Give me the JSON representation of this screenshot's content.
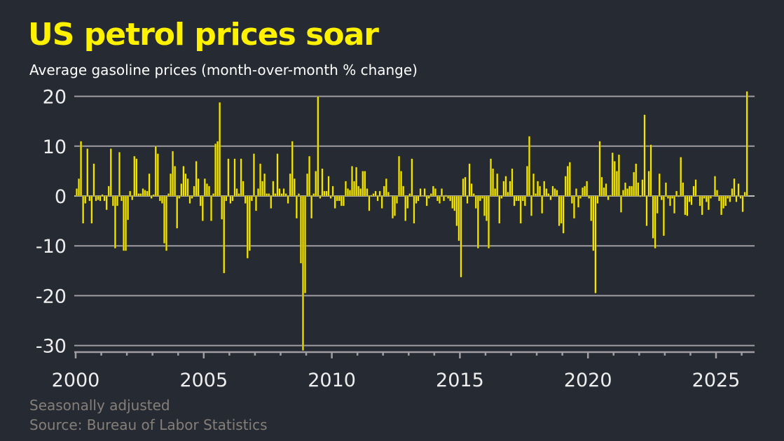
{
  "chart_data": {
    "type": "bar",
    "title": "US petrol prices soar",
    "subtitle": "Average gasoline prices (month-over-month % change)",
    "xlabel": "",
    "ylabel": "",
    "x_start": "2000-01",
    "x_end": "2026-03",
    "frequency": "monthly",
    "xlim": [
      2000,
      2026.25
    ],
    "ylim": [
      -31,
      21
    ],
    "yticks": [
      20,
      10,
      0,
      -10,
      -20,
      -30
    ],
    "ytick_labels": [
      "20",
      "10",
      "0",
      "-10",
      "-20",
      "-30"
    ],
    "xticks": [
      2000,
      2005,
      2010,
      2015,
      2020,
      2025
    ],
    "xtick_labels": [
      "2000",
      "2005",
      "2010",
      "2015",
      "2020",
      "2025"
    ],
    "grid": "horizontal",
    "values": [
      1.5,
      3.5,
      11,
      -5.5,
      -1.5,
      9.5,
      -1,
      -5.5,
      6.5,
      -1,
      -0.8,
      -1,
      0.3,
      -1,
      -2.8,
      2,
      9.5,
      -2,
      -10.5,
      -2,
      8.8,
      -1,
      -11,
      -11,
      -4.8,
      1,
      -0.8,
      8,
      7.5,
      0.5,
      0.5,
      1.5,
      1.2,
      1,
      4.5,
      -0.5,
      0.3,
      10,
      8.5,
      -1,
      -1.5,
      -9.5,
      -11,
      0.5,
      4.5,
      9,
      6,
      -6.5,
      -0.5,
      2.5,
      6,
      4.5,
      3.5,
      -1.5,
      -0.5,
      2,
      7,
      3.5,
      -2,
      -5,
      3.5,
      2.5,
      2,
      -5,
      0.5,
      10.5,
      11,
      18.8,
      -4.7,
      -15.5,
      -1,
      7.5,
      -1.5,
      -1,
      7.5,
      1.5,
      0.5,
      7.5,
      3,
      -1.5,
      -12.5,
      -11,
      -1,
      8.5,
      -3,
      1.5,
      6.5,
      3,
      4.5,
      0.5,
      0.5,
      -2.5,
      3,
      0.5,
      8.5,
      1.5,
      0.5,
      1.5,
      0.5,
      -1.5,
      4.5,
      11,
      3.5,
      -4.5,
      0.5,
      -13.5,
      -31,
      -19.5,
      4.5,
      8,
      -4.5,
      0.5,
      5,
      20,
      -0.5,
      5.5,
      1,
      1,
      4,
      -0.5,
      2,
      -2.5,
      -1,
      -1,
      -2,
      -2,
      3,
      1.5,
      1.2,
      6,
      3,
      5.8,
      2,
      1.5,
      5,
      5,
      1.5,
      -3,
      0.2,
      0.5,
      1,
      -1,
      1,
      -2.5,
      2,
      3.5,
      0.8,
      0,
      -4.5,
      -4,
      -1.5,
      8,
      5,
      2,
      -5,
      -2.5,
      0.5,
      7.5,
      -5.5,
      -1.5,
      -1,
      1.5,
      0,
      1.5,
      -2,
      -0.5,
      0.5,
      2,
      1.5,
      -1,
      -1.5,
      1.5,
      -1,
      0.2,
      -0.5,
      -1,
      -2.5,
      -3,
      -6,
      -9,
      -16.3,
      3.5,
      3.8,
      -1.5,
      6.5,
      2.5,
      0.5,
      -2.5,
      -10.5,
      -1,
      -0.5,
      -4,
      -5,
      -10.5,
      7.5,
      5.5,
      1.5,
      4.5,
      -5.5,
      -0.5,
      3,
      4,
      0.8,
      3,
      5.5,
      -2,
      -1,
      -1,
      -5.5,
      -1,
      -2,
      6,
      12,
      -4,
      4.5,
      0.5,
      3,
      2,
      -3.5,
      3,
      1.5,
      0.5,
      -0.8,
      2,
      1.5,
      1.2,
      -6,
      -5.5,
      -7.5,
      4,
      6,
      6.8,
      -1.5,
      -4.5,
      1.5,
      -2.3,
      -0.5,
      1.7,
      2,
      3,
      -0.5,
      -5,
      -11,
      -19.5,
      -1.5,
      11,
      3.8,
      1.7,
      2.5,
      -0.8,
      0.2,
      8.7,
      7,
      5,
      8.3,
      -3.3,
      1.2,
      2.7,
      1.5,
      2,
      2,
      4.8,
      6.5,
      2.7,
      -0.2,
      3.3,
      16.3,
      -6,
      5,
      10.3,
      -8.5,
      -10.5,
      -3.5,
      4.5,
      -0.8,
      -8,
      2.7,
      -0.5,
      -2,
      -0.5,
      -3.5,
      1,
      -0.2,
      7.8,
      2.7,
      -3.8,
      -4,
      -1.2,
      -1.8,
      2,
      3.3,
      -0.1,
      -2,
      -3.8,
      -0.5,
      -1.2,
      -2.8,
      -0.5,
      0,
      4,
      1.2,
      -1,
      -3.8,
      -2.5,
      -2,
      -0.5,
      -1.2,
      1.5,
      3.5,
      -1.2,
      2.5,
      -0.5,
      -3.2,
      0.8,
      21
    ],
    "colors": {
      "bars": "#f2e600",
      "title": "#fff200",
      "background": "#262a33",
      "grid": "#a09ea3"
    }
  },
  "footer": {
    "note": "Seasonally adjusted",
    "source": "Source: Bureau of Labor Statistics"
  }
}
